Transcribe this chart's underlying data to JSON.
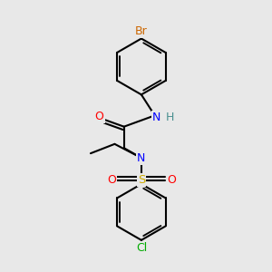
{
  "bg_color": "#e8e8e8",
  "atom_colors": {
    "C": "#000000",
    "H": "#4a9090",
    "N": "#0000ff",
    "O": "#ff0000",
    "S": "#ccaa00",
    "Br": "#cc6600",
    "Cl": "#00aa00"
  },
  "bond_color": "#000000",
  "bond_width": 1.5
}
